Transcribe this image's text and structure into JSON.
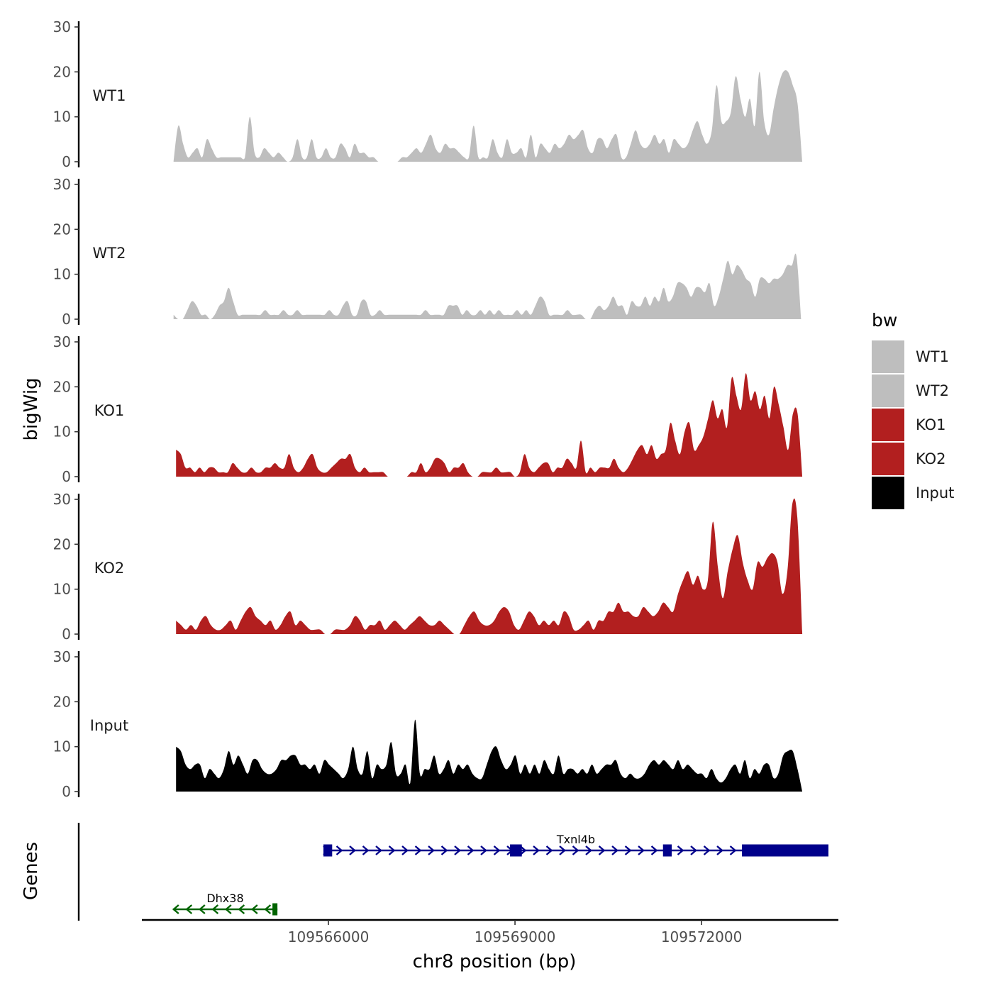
{
  "chart_data": {
    "type": "area",
    "title": "",
    "ylabel": "bigWig",
    "genes_label": "Genes",
    "xlabel": "chr8 position (bp)",
    "xlim": [
      109563000,
      109574200
    ],
    "x_ticks": [
      109566000,
      109569000,
      109572000
    ],
    "x_tick_labels": [
      "109566000",
      "109569000",
      "109572000"
    ],
    "ylim": [
      0,
      30
    ],
    "y_ticks": [
      0,
      10,
      20,
      30
    ],
    "y_tick_labels": [
      "0",
      "10",
      "20",
      "30"
    ],
    "tracks": [
      {
        "name": "WT1",
        "color": "#bebebe",
        "x_start": 109563510,
        "x_end": 109573620,
        "values": [
          0,
          8,
          4,
          1,
          2,
          3,
          1,
          5,
          3,
          1,
          1,
          1,
          1,
          1,
          1,
          1,
          10,
          2,
          1,
          3,
          2,
          1,
          2,
          1,
          0,
          1,
          5,
          1,
          1,
          5,
          1,
          1,
          3,
          1,
          1,
          4,
          3,
          1,
          4,
          2,
          2,
          1,
          1,
          0,
          0,
          0,
          0,
          0,
          1,
          1,
          2,
          3,
          2,
          4,
          6,
          3,
          2,
          4,
          3,
          3,
          2,
          1,
          1,
          8,
          1,
          1,
          1,
          5,
          2,
          1,
          5,
          2,
          2,
          3,
          1,
          6,
          1,
          4,
          3,
          2,
          4,
          3,
          4,
          6,
          5,
          6,
          7,
          3,
          2,
          5,
          5,
          3,
          5,
          6,
          1,
          1,
          4,
          7,
          4,
          3,
          4,
          6,
          4,
          5,
          2,
          5,
          4,
          3,
          4,
          7,
          9,
          6,
          4,
          7,
          17,
          9,
          9,
          11,
          19,
          14,
          10,
          14,
          8,
          20,
          9,
          6,
          12,
          17,
          20,
          20,
          17,
          13,
          0
        ]
      },
      {
        "name": "WT2",
        "color": "#bebebe",
        "x_start": 109563510,
        "x_end": 109573600,
        "values": [
          1,
          0,
          0,
          2,
          4,
          3,
          1,
          1,
          0,
          1,
          3,
          4,
          7,
          4,
          1,
          1,
          1,
          1,
          1,
          1,
          2,
          1,
          1,
          1,
          2,
          1,
          1,
          2,
          1,
          1,
          1,
          1,
          1,
          1,
          2,
          1,
          1,
          3,
          4,
          1,
          1,
          4,
          4,
          1,
          1,
          2,
          1,
          1,
          1,
          1,
          1,
          1,
          1,
          1,
          1,
          2,
          1,
          1,
          1,
          1,
          3,
          3,
          3,
          1,
          2,
          1,
          1,
          2,
          1,
          2,
          1,
          2,
          1,
          1,
          1,
          2,
          1,
          2,
          1,
          3,
          5,
          4,
          1,
          1,
          1,
          1,
          2,
          1,
          1,
          1,
          0,
          0,
          2,
          3,
          2,
          3,
          5,
          3,
          3,
          1,
          4,
          3,
          3,
          5,
          3,
          5,
          4,
          7,
          4,
          5,
          8,
          8,
          7,
          5,
          7,
          7,
          6,
          8,
          3,
          5,
          9,
          13,
          10,
          12,
          11,
          9,
          8,
          5,
          9,
          9,
          8,
          9,
          9,
          10,
          12,
          12,
          14,
          0
        ]
      },
      {
        "name": "KO1",
        "color": "#b21f1f",
        "x_start": 109563550,
        "x_end": 109573620,
        "values": [
          6,
          5,
          2,
          2,
          1,
          2,
          1,
          2,
          2,
          1,
          1,
          1,
          3,
          2,
          1,
          1,
          2,
          1,
          1,
          2,
          2,
          3,
          2,
          2,
          5,
          2,
          1,
          2,
          4,
          5,
          2,
          1,
          1,
          2,
          3,
          4,
          4,
          5,
          2,
          1,
          2,
          1,
          1,
          1,
          1,
          0,
          0,
          0,
          0,
          0,
          1,
          1,
          3,
          1,
          2,
          4,
          4,
          3,
          1,
          2,
          2,
          3,
          1,
          0,
          0,
          1,
          1,
          1,
          2,
          1,
          1,
          1,
          0,
          1,
          5,
          2,
          1,
          2,
          3,
          3,
          1,
          2,
          2,
          4,
          3,
          2,
          8,
          1,
          2,
          1,
          2,
          2,
          2,
          4,
          2,
          1,
          2,
          4,
          6,
          7,
          5,
          7,
          4,
          5,
          6,
          12,
          8,
          5,
          10,
          12,
          6,
          7,
          9,
          13,
          17,
          13,
          15,
          11,
          22,
          18,
          15,
          23,
          17,
          19,
          15,
          18,
          13,
          20,
          16,
          11,
          6,
          14,
          14,
          0
        ]
      },
      {
        "name": "KO2",
        "color": "#b21f1f",
        "x_start": 109563550,
        "x_end": 109573620,
        "values": [
          3,
          2,
          1,
          2,
          1,
          3,
          4,
          2,
          1,
          1,
          2,
          3,
          1,
          3,
          5,
          6,
          4,
          3,
          2,
          3,
          1,
          2,
          4,
          5,
          2,
          3,
          2,
          1,
          1,
          1,
          0,
          0,
          1,
          1,
          1,
          2,
          4,
          3,
          1,
          2,
          2,
          3,
          1,
          2,
          3,
          2,
          1,
          2,
          3,
          4,
          3,
          2,
          2,
          3,
          2,
          1,
          0,
          0,
          2,
          4,
          5,
          3,
          2,
          2,
          3,
          5,
          6,
          5,
          2,
          1,
          3,
          5,
          4,
          2,
          3,
          2,
          3,
          2,
          5,
          4,
          1,
          1,
          2,
          3,
          1,
          3,
          3,
          5,
          5,
          7,
          5,
          5,
          4,
          4,
          6,
          5,
          4,
          5,
          7,
          6,
          5,
          9,
          12,
          14,
          11,
          13,
          10,
          12,
          25,
          15,
          8,
          14,
          19,
          22,
          16,
          12,
          10,
          16,
          15,
          17,
          18,
          16,
          9,
          14,
          29,
          26,
          0
        ]
      },
      {
        "name": "Input",
        "color": "#000000",
        "x_start": 109563550,
        "x_end": 109573620,
        "values": [
          10,
          9,
          6,
          5,
          6,
          6,
          3,
          5,
          4,
          3,
          5,
          9,
          6,
          8,
          6,
          4,
          7,
          7,
          5,
          4,
          4,
          5,
          7,
          7,
          8,
          8,
          6,
          6,
          5,
          6,
          4,
          7,
          6,
          5,
          4,
          3,
          5,
          10,
          5,
          4,
          9,
          3,
          6,
          5,
          6,
          11,
          4,
          4,
          6,
          2,
          16,
          4,
          5,
          5,
          8,
          4,
          5,
          7,
          4,
          6,
          5,
          6,
          4,
          3,
          3,
          6,
          9,
          10,
          7,
          5,
          6,
          8,
          4,
          6,
          4,
          6,
          4,
          7,
          5,
          4,
          8,
          4,
          5,
          5,
          4,
          5,
          4,
          6,
          4,
          5,
          6,
          6,
          7,
          4,
          3,
          4,
          3,
          3,
          4,
          6,
          7,
          6,
          7,
          6,
          5,
          7,
          5,
          6,
          5,
          4,
          4,
          3,
          5,
          3,
          2,
          3,
          5,
          6,
          4,
          7,
          3,
          5,
          4,
          6,
          6,
          3,
          4,
          8,
          9,
          9,
          5,
          0
        ]
      }
    ],
    "legend": {
      "title": "bw",
      "position": "right",
      "items": [
        {
          "label": "WT1",
          "color": "#bebebe"
        },
        {
          "label": "WT2",
          "color": "#bebebe"
        },
        {
          "label": "KO1",
          "color": "#b21f1f"
        },
        {
          "label": "KO2",
          "color": "#b21f1f"
        },
        {
          "label": "Input",
          "color": "#000000"
        }
      ]
    },
    "genes": [
      {
        "name": "Txnl4b",
        "strand": "+",
        "color": "#00008b",
        "start": 109565920,
        "end": 109574040,
        "exons": [
          [
            109565920,
            109566060
          ],
          [
            109568920,
            109569110
          ],
          [
            109571380,
            109571520
          ],
          [
            109572650,
            109574040
          ]
        ]
      },
      {
        "name": "Dhx38",
        "strand": "-",
        "color": "#006400",
        "start": 109563500,
        "end": 109565180,
        "exons": [
          [
            109565100,
            109565180
          ]
        ]
      }
    ]
  }
}
